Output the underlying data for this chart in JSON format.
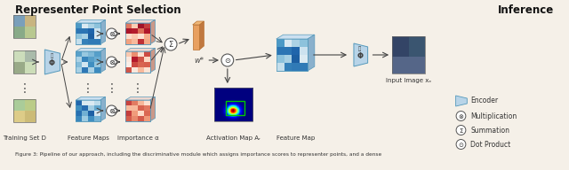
{
  "bg_color": "#f5f0e8",
  "title_left": "Representer Point Selection",
  "title_right": "Inference",
  "title_fontsize": 8.5,
  "caption": "Figure 3: Pipeline of our approach, including the discriminative module which assigns importance scores to representer points, and a dense",
  "legend_items": [
    "Encoder",
    "Multiplication",
    "Summation",
    "Dot Product"
  ],
  "label_training": "Training Set D",
  "label_feature": "Feature Maps",
  "label_importance": "Importance α",
  "label_activation": "Activation Map Aᵣ",
  "label_featuremap": "Feature Map",
  "label_input": "Input Image xₑ",
  "label_w": "w*"
}
